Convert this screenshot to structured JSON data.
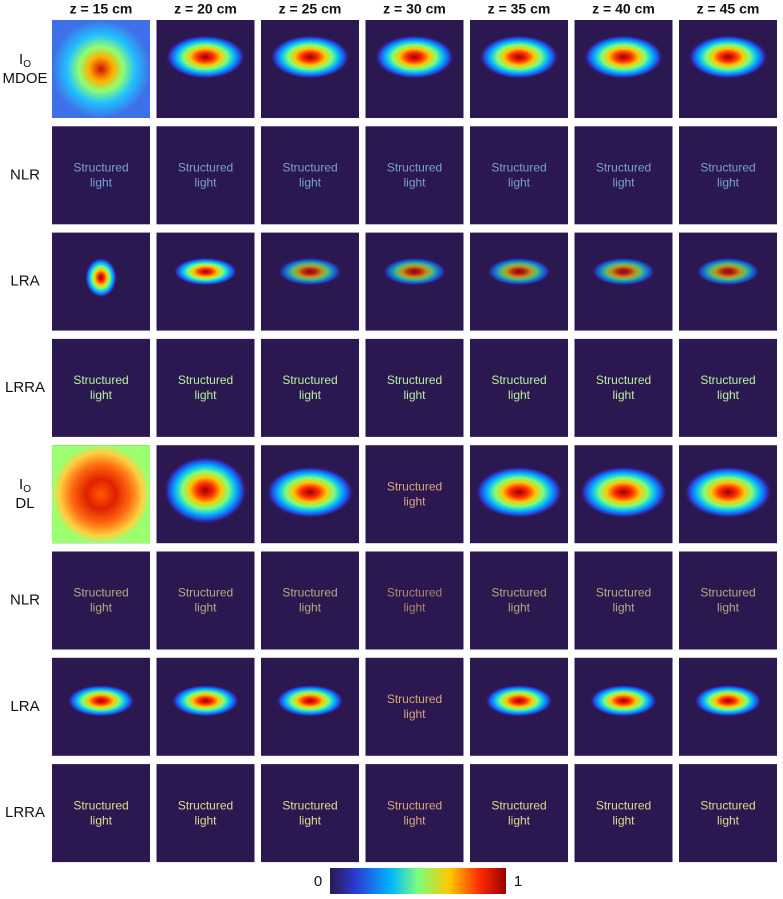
{
  "columns": [
    "z = 15 cm",
    "z = 20 cm",
    "z = 25 cm",
    "z = 30 cm",
    "z = 35 cm",
    "z = 40 cm",
    "z = 45 cm"
  ],
  "rows": [
    {
      "symbol": "I",
      "subscript": "O",
      "name": "MDOE"
    },
    {
      "name": "NLR"
    },
    {
      "name": "LRA"
    },
    {
      "name": "LRRA"
    },
    {
      "symbol": "I",
      "subscript": "O",
      "name": "DL"
    },
    {
      "name": "NLR"
    },
    {
      "name": "LRA"
    },
    {
      "name": "LRRA"
    }
  ],
  "panel_text": {
    "line1": "Structured",
    "line2": "light"
  },
  "colorbar": {
    "min_label": "0",
    "max_label": "1"
  }
}
